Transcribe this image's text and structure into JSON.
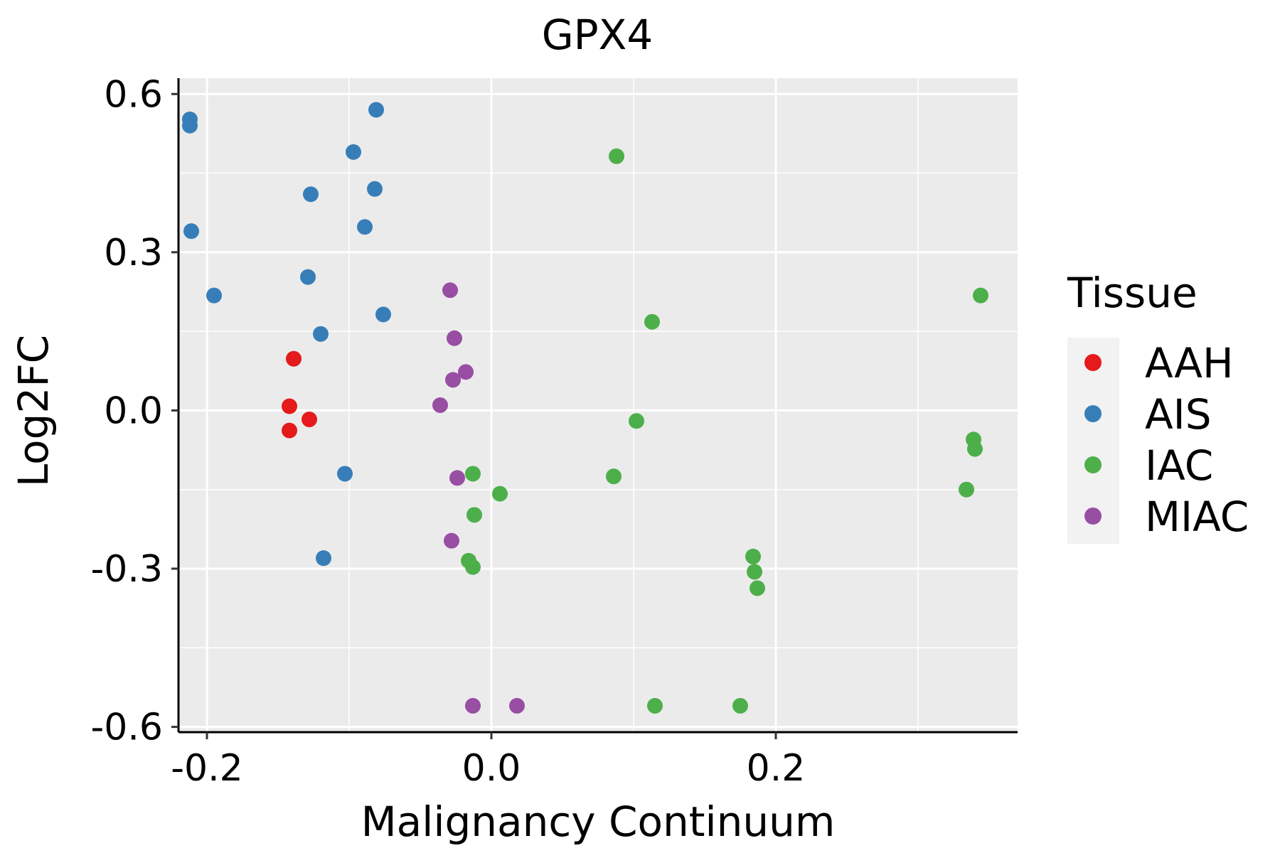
{
  "chart_data": {
    "type": "scatter",
    "title": "GPX4",
    "xlabel": "Malignancy Continuum",
    "ylabel": "Log2FC",
    "xlim": [
      -0.22,
      0.37
    ],
    "ylim": [
      -0.61,
      0.63
    ],
    "xticks": [
      -0.2,
      0.0,
      0.2
    ],
    "xtick_labels": [
      "-0.2",
      "0.0",
      "0.2"
    ],
    "yticks": [
      -0.6,
      -0.3,
      0.0,
      0.3,
      0.6
    ],
    "ytick_labels": [
      "-0.6",
      "-0.3",
      "0.0",
      "0.3",
      "0.6"
    ],
    "grid": true,
    "legend": {
      "title": "Tissue",
      "position": "right"
    },
    "series": [
      {
        "name": "AAH",
        "color": "#E41A1C",
        "points": [
          [
            -0.139,
            0.098
          ],
          [
            -0.142,
            0.008
          ],
          [
            -0.142,
            -0.038
          ],
          [
            -0.128,
            -0.017
          ]
        ]
      },
      {
        "name": "AIS",
        "color": "#377EB8",
        "points": [
          [
            -0.212,
            0.552
          ],
          [
            -0.212,
            0.54
          ],
          [
            -0.211,
            0.34
          ],
          [
            -0.195,
            0.218
          ],
          [
            -0.127,
            0.41
          ],
          [
            -0.129,
            0.253
          ],
          [
            -0.12,
            0.145
          ],
          [
            -0.081,
            0.57
          ],
          [
            -0.097,
            0.49
          ],
          [
            -0.082,
            0.42
          ],
          [
            -0.089,
            0.348
          ],
          [
            -0.076,
            0.182
          ],
          [
            -0.103,
            -0.12
          ],
          [
            -0.118,
            -0.28
          ]
        ]
      },
      {
        "name": "IAC",
        "color": "#4DAF4A",
        "points": [
          [
            0.088,
            0.482
          ],
          [
            0.113,
            0.168
          ],
          [
            0.102,
            -0.02
          ],
          [
            0.086,
            -0.125
          ],
          [
            -0.013,
            -0.12
          ],
          [
            0.006,
            -0.158
          ],
          [
            -0.012,
            -0.198
          ],
          [
            -0.016,
            -0.285
          ],
          [
            -0.013,
            -0.297
          ],
          [
            0.115,
            -0.56
          ],
          [
            0.175,
            -0.56
          ],
          [
            0.184,
            -0.277
          ],
          [
            0.185,
            -0.306
          ],
          [
            0.187,
            -0.337
          ],
          [
            0.344,
            0.218
          ],
          [
            0.339,
            -0.055
          ],
          [
            0.34,
            -0.073
          ],
          [
            0.334,
            -0.15
          ]
        ]
      },
      {
        "name": "MIAC",
        "color": "#984EA3",
        "points": [
          [
            -0.029,
            0.228
          ],
          [
            -0.026,
            0.137
          ],
          [
            -0.018,
            0.073
          ],
          [
            -0.027,
            0.058
          ],
          [
            -0.036,
            0.01
          ],
          [
            -0.024,
            -0.128
          ],
          [
            -0.028,
            -0.247
          ],
          [
            -0.013,
            -0.56
          ],
          [
            0.018,
            -0.56
          ]
        ]
      }
    ]
  }
}
